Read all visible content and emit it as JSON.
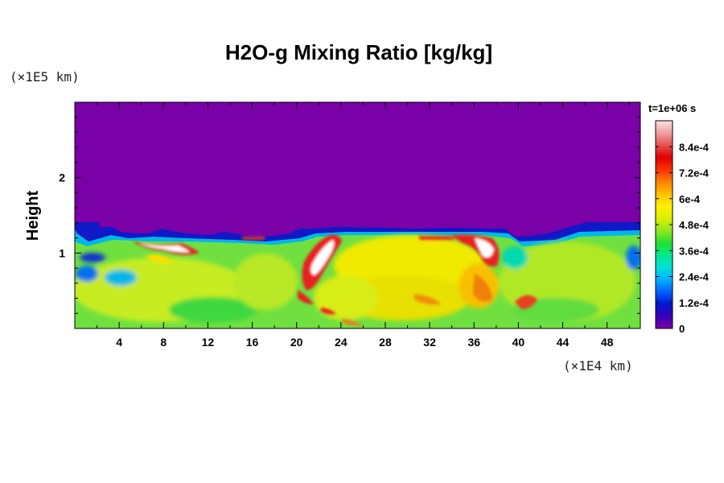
{
  "chart_data": {
    "type": "heatmap",
    "title": "H2O-g Mixing Ratio [kg/kg]",
    "time_label": "t=1e+06 s",
    "ylabel": "Height",
    "y_unit": "(×1E5 km)",
    "x_unit": "(×1E4 km)",
    "xlim": [
      0,
      51
    ],
    "ylim": [
      0,
      3
    ],
    "x_ticks": [
      "4",
      "8",
      "12",
      "16",
      "20",
      "24",
      "28",
      "32",
      "36",
      "40",
      "44",
      "48"
    ],
    "x_tick_values": [
      4,
      8,
      12,
      16,
      20,
      24,
      28,
      32,
      36,
      40,
      44,
      48
    ],
    "y_ticks": [
      "1",
      "2"
    ],
    "y_tick_values": [
      1,
      2
    ],
    "colorbar": {
      "vmin": 0,
      "vmax": 0.00096,
      "tick_labels": [
        "0",
        "1.2e-4",
        "2.4e-4",
        "3.6e-4",
        "4.8e-4",
        "6e-4",
        "7.2e-4",
        "8.4e-4"
      ],
      "tick_values": [
        0,
        0.00012,
        0.00024,
        0.00036,
        0.00048,
        0.0006,
        0.00072,
        0.00084
      ],
      "colors": [
        "#7a00a8",
        "#3a00b8",
        "#0018d0",
        "#0060ff",
        "#00b0ff",
        "#00e0d8",
        "#00e890",
        "#20e030",
        "#90e820",
        "#d8f000",
        "#fff000",
        "#ffc000",
        "#ff8000",
        "#ff3000",
        "#e00000",
        "#e85050",
        "#f0a0a0",
        "#ffe0e0"
      ]
    },
    "field": {
      "background_value": 0.0,
      "moist_layer_top_height": 1.3,
      "typical_value_in_layer": 0.00055,
      "max_value": 0.00092
    }
  }
}
